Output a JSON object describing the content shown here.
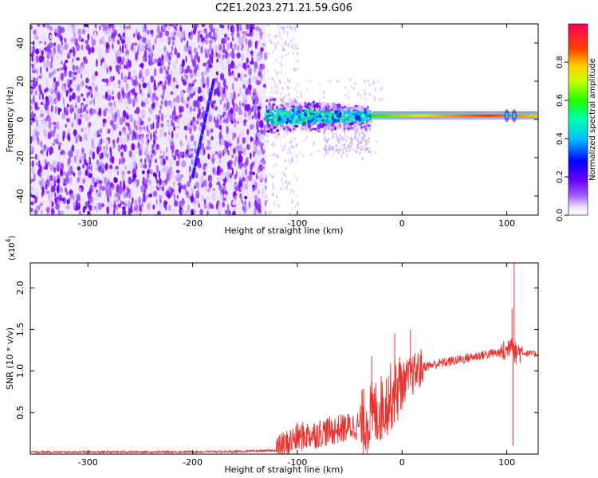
{
  "figure": {
    "title": "C2E1.2023.271.21.59.G06"
  },
  "colorbar": {
    "label": "Normalized spectral amplitude",
    "ticks": [
      "0.0",
      "0.2",
      "0.4",
      "0.6",
      "0.8"
    ],
    "tick_values": [
      0.0,
      0.2,
      0.4,
      0.6,
      0.8
    ],
    "range": [
      0,
      1
    ],
    "colormap": "hsv-rainbow"
  },
  "chart_data": [
    {
      "type": "heatmap",
      "title": "C2E1.2023.271.21.59.G06",
      "xlabel": "Height of straight line (km)",
      "ylabel": "Frequency (Hz)",
      "xlim": [
        -355,
        130
      ],
      "ylim": [
        -50,
        50
      ],
      "x_ticks": [
        -300,
        -200,
        -100,
        0,
        100
      ],
      "x_tick_labels": [
        "-300",
        "-200",
        "-100",
        "0",
        "100"
      ],
      "y_ticks": [
        -40,
        -20,
        0,
        20,
        40
      ],
      "y_tick_labels": [
        "-40",
        "-20",
        "0",
        "20",
        "40"
      ],
      "features": [
        {
          "kind": "noise-region",
          "x_range": [
            -355,
            -130
          ],
          "freq_range": [
            -50,
            50
          ],
          "amplitude": 0.1
        },
        {
          "kind": "doppler-trace",
          "x": [
            -200,
            -180
          ],
          "freq": [
            -30,
            20
          ],
          "amplitude": 0.3
        },
        {
          "kind": "signal-spread",
          "x_range": [
            -130,
            -30
          ],
          "freq_range": [
            -8,
            10
          ],
          "amplitude": 0.45
        },
        {
          "kind": "carrier-line",
          "x_range": [
            -30,
            130
          ],
          "freq": 2,
          "amplitude": 0.9
        }
      ]
    },
    {
      "type": "line",
      "xlabel": "Height of straight line (km)",
      "ylabel": "SNR (10 * v/v)",
      "y_multiplier": "(x10",
      "y_multiplier_exp": "4",
      "y_multiplier_close": ")",
      "xlim": [
        -355,
        130
      ],
      "ylim": [
        0,
        23000
      ],
      "x_ticks": [
        -300,
        -200,
        -100,
        0,
        100
      ],
      "x_tick_labels": [
        "-300",
        "-200",
        "-100",
        "0",
        "100"
      ],
      "y_ticks": [
        5000,
        10000,
        15000,
        20000
      ],
      "y_tick_labels": [
        "0.5",
        "1.0",
        "1.5",
        "2.0"
      ],
      "color": "#e8322e",
      "series": [
        {
          "x": [
            -355,
            -300,
            -250,
            -200,
            -150,
            -120,
            -110,
            -100,
            -80,
            -60,
            -40,
            -30,
            -20,
            -10,
            0,
            10,
            20,
            40,
            60,
            80,
            100,
            105,
            108,
            110,
            120,
            130
          ],
          "y": [
            250,
            250,
            260,
            280,
            320,
            450,
            1200,
            2000,
            2500,
            3000,
            3500,
            4500,
            5500,
            7000,
            8500,
            9500,
            10500,
            11000,
            11500,
            12000,
            12300,
            14000,
            12000,
            12400,
            12100,
            12000
          ]
        }
      ],
      "spikes": [
        {
          "x": -29,
          "y": 11800
        },
        {
          "x": -7,
          "y": 14500
        },
        {
          "x": 8,
          "y": 15000
        },
        {
          "x": 105,
          "y": 17500
        },
        {
          "x": 106,
          "y": 1000
        },
        {
          "x": 107,
          "y": 23000
        }
      ]
    }
  ]
}
